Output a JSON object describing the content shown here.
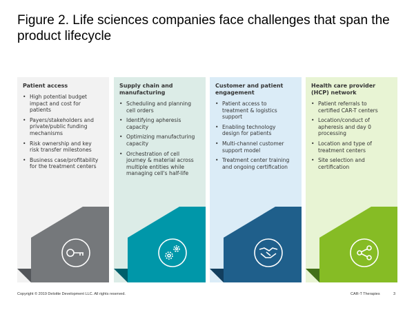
{
  "title": "Figure 2. Life sciences companies face challenges that span the product lifecycle",
  "columns": [
    {
      "heading": "Patient access",
      "bullets": [
        "High potential budget impact and cost for patients",
        "Payers/stakeholders and private/public funding mechanisms",
        "Risk ownership and key risk transfer milestones",
        "Business case/profitability for the treatment centers"
      ]
    },
    {
      "heading": "Supply chain and manufacturing",
      "bullets": [
        "Scheduling and planning cell orders",
        "Identifying apheresis capacity",
        "Optimizing manufacturing capacity",
        "Orchestration of cell journey & material across multiple entities while managing cell's half-life"
      ]
    },
    {
      "heading": "Customer and patient engagement",
      "bullets": [
        "Patient access to treatment & logistics support",
        "Enabling technology design for patients",
        "Multi-channel customer support model",
        "Treatment center training and ongoing certification"
      ]
    },
    {
      "heading": "Health care provider (HCP) network",
      "bullets": [
        "Patient referrals to certified CAR-T centers",
        "Location/conduct of apheresis and day 0 processing",
        "Location and type of treatment centers",
        "Site selection and certification"
      ]
    }
  ],
  "footer": {
    "copyright": "Copyright © 2019 Deloitte Development LLC. All rights reserved.",
    "label": "CAR-T Therapies",
    "page": "3"
  }
}
